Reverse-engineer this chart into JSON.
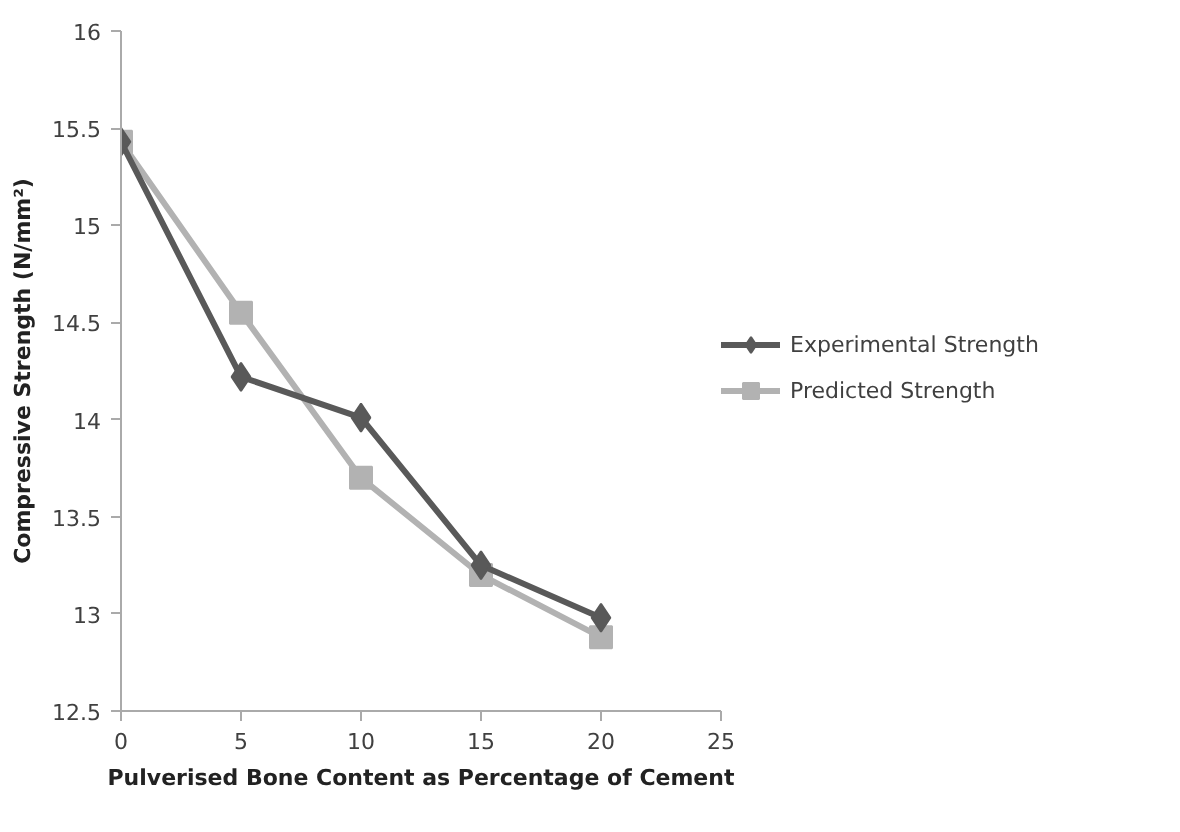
{
  "chart_data": {
    "type": "line",
    "xlabel": "Pulverised Bone Content as Percentage of Cement",
    "ylabel": "Compressive Strength (N/mm²)",
    "x": [
      0,
      5,
      10,
      15,
      20
    ],
    "series": [
      {
        "name": "Experimental Strength",
        "color": "#595959",
        "marker": "diamond",
        "values": [
          15.43,
          14.22,
          14.01,
          13.25,
          12.98
        ]
      },
      {
        "name": "Predicted Strength",
        "color": "#b2b2b2",
        "marker": "square",
        "values": [
          15.43,
          14.55,
          13.7,
          13.2,
          12.88
        ]
      }
    ],
    "xlim": [
      0,
      25
    ],
    "xticks": [
      0,
      5,
      10,
      15,
      20,
      25
    ],
    "ylim": [
      12.5,
      16
    ],
    "yticks": [
      12.5,
      13,
      13.5,
      14,
      14.5,
      15,
      15.5,
      16
    ],
    "grid": false,
    "legend": "right",
    "line_style": "solid"
  }
}
